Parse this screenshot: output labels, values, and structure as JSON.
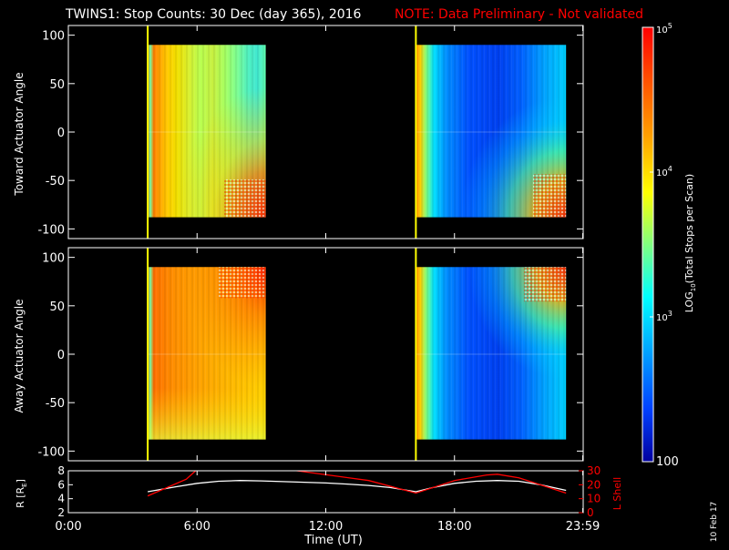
{
  "title": {
    "main": "TWINS1: Stop Counts: 30 Dec (day 365), 2016",
    "note": "NOTE: Data Preliminary - Not validated"
  },
  "colors": {
    "background": "#000000",
    "text": "#ffffff",
    "note": "#ff0000",
    "lshell": "#ff0000",
    "r_line": "#ffffff",
    "marker": "#ffff00"
  },
  "plot_date": "10 Feb 17",
  "chart_data": [
    {
      "type": "heatmap",
      "name": "toward-panel",
      "ylabel": "Toward Actuator Angle",
      "ylim": [
        -110,
        110
      ],
      "yticks": [
        100,
        50,
        0,
        -50,
        -100
      ],
      "xlim": [
        0,
        24
      ],
      "x_unit": "hours UT",
      "blocks": [
        {
          "x_start": 3.7,
          "x_end": 9.2,
          "y_start": -88,
          "y_end": 90,
          "pattern": "orange"
        },
        {
          "x_start": 16.2,
          "x_end": 23.2,
          "y_start": -88,
          "y_end": 90,
          "pattern": "blue"
        }
      ],
      "markers_x": [
        3.7,
        16.2
      ]
    },
    {
      "type": "heatmap",
      "name": "away-panel",
      "ylabel": "Away Actuator Angle",
      "ylim": [
        -110,
        110
      ],
      "yticks": [
        100,
        50,
        0,
        -50,
        -100
      ],
      "xlim": [
        0,
        24
      ],
      "x_unit": "hours UT",
      "blocks": [
        {
          "x_start": 3.7,
          "x_end": 9.2,
          "y_start": -88,
          "y_end": 90,
          "pattern": "orange"
        },
        {
          "x_start": 16.2,
          "x_end": 23.2,
          "y_start": -88,
          "y_end": 90,
          "pattern": "blue"
        }
      ],
      "markers_x": [
        3.7,
        16.2
      ]
    },
    {
      "type": "line",
      "name": "orbit-panel",
      "xlabel": "Time (UT)",
      "xticks": [
        "0:00",
        "6:00",
        "12:00",
        "18:00",
        "23:59"
      ],
      "xtick_values": [
        0,
        6,
        12,
        18,
        23.98
      ],
      "xlim": [
        0,
        24
      ],
      "ylabel_left": "R [R",
      "ylabel_left_sub": "E",
      "ylabel_left_end": "]",
      "ylim_left": [
        2,
        8
      ],
      "yticks_left": [
        8,
        6,
        4,
        2
      ],
      "ylabel_right": "L Shell",
      "ylim_right": [
        0,
        30
      ],
      "yticks_right": [
        30,
        20,
        10,
        0
      ],
      "series": [
        {
          "name": "R",
          "axis": "left",
          "x": [
            3.7,
            5,
            6,
            7,
            8,
            9,
            10,
            11,
            12,
            13,
            14,
            15,
            16.2,
            17,
            18,
            19,
            20,
            21,
            22,
            23.2
          ],
          "y": [
            5.0,
            5.7,
            6.2,
            6.5,
            6.6,
            6.55,
            6.45,
            6.35,
            6.25,
            6.1,
            5.9,
            5.6,
            5.0,
            5.6,
            6.2,
            6.5,
            6.6,
            6.5,
            6.0,
            5.2
          ]
        },
        {
          "name": "L Shell",
          "axis": "right",
          "x": [
            3.7,
            5.5,
            6,
            10.2,
            14,
            16.2,
            18,
            19.5,
            20,
            21,
            23.2
          ],
          "y": [
            12,
            24,
            31,
            31,
            23,
            14,
            23,
            27,
            27.5,
            25,
            14
          ]
        }
      ]
    },
    {
      "type": "colorbar",
      "name": "colorbar",
      "label_log": "LOG",
      "label_sub": "10",
      "label_rest": "(Total Stops per Scan)",
      "range": [
        100,
        100000
      ],
      "tick_labels": [
        {
          "base": "10",
          "exp": "5",
          "value": 100000
        },
        {
          "base": "10",
          "exp": "4",
          "value": 10000
        },
        {
          "base": "10",
          "exp": "3",
          "value": 1000
        },
        {
          "base": "100",
          "exp": "",
          "value": 100
        }
      ]
    }
  ]
}
